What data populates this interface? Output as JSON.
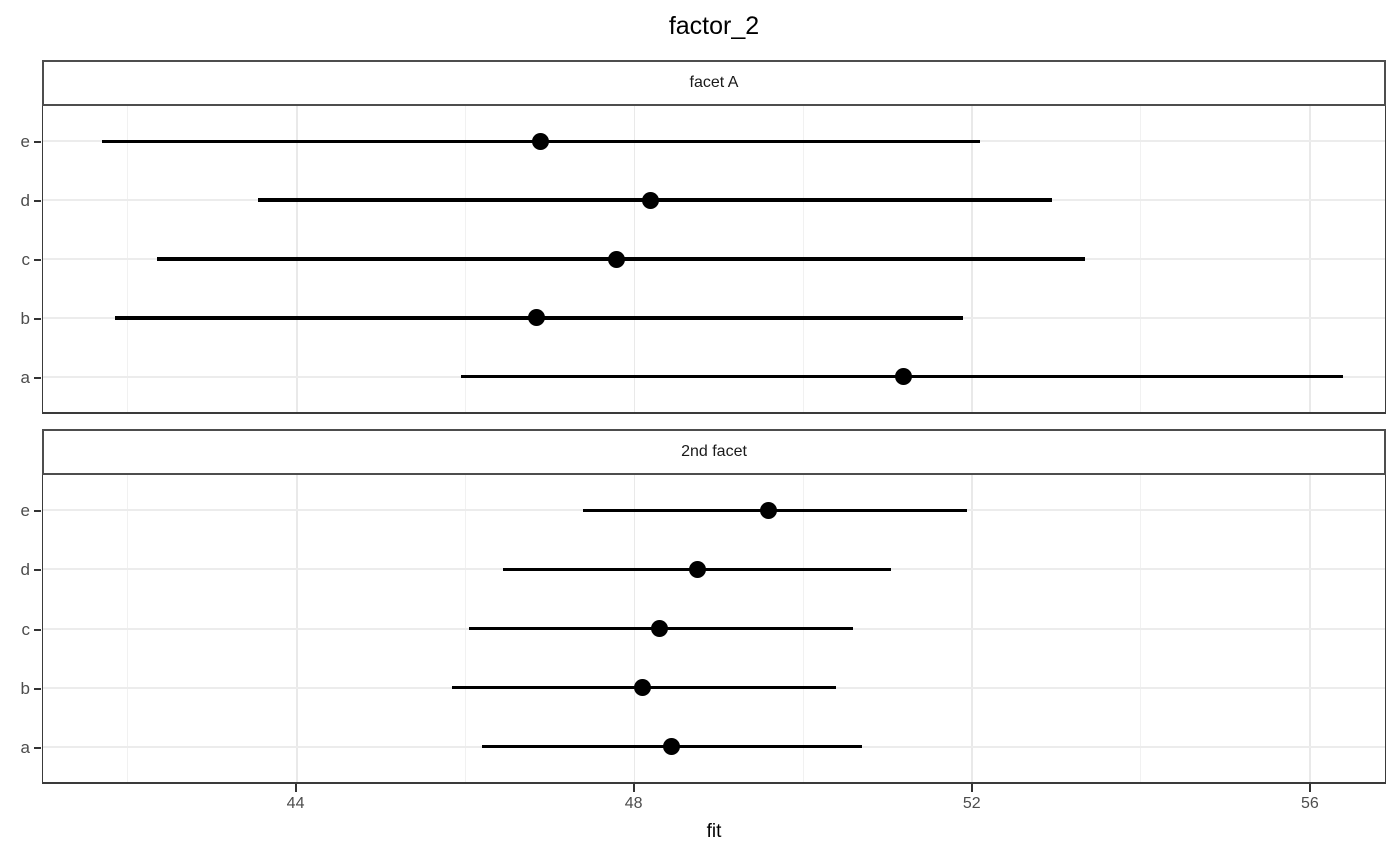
{
  "title": "factor_2",
  "colors": {
    "background": "#ffffff",
    "point": "#000000",
    "error_bar": "#000000",
    "grid_major": "#e9e9e9",
    "grid_minor": "#f1f1f1",
    "grid_row": "#ececec",
    "panel_border": "#3a3a3a",
    "strip_border": "#4d4d4d",
    "strip_background": "#ffffff",
    "axis_text": "#4d4d4d",
    "tick_mark": "#333333",
    "title_text": "#000000"
  },
  "chart_data": {
    "type": "scatter",
    "subtype": "dot-plot-with-horizontal-error-bars",
    "title": "factor_2",
    "xlabel": "fit",
    "ylabel": "",
    "xlim": [
      41.0,
      56.9
    ],
    "x_ticks": [
      44,
      48,
      52,
      56
    ],
    "x_minor_ticks": [
      42,
      46,
      50,
      54
    ],
    "grid": true,
    "legend": false,
    "y_categories_top_to_bottom": [
      "e",
      "d",
      "c",
      "b",
      "a"
    ],
    "facets": [
      {
        "label": "facet A",
        "points": [
          {
            "y": "e",
            "fit": 46.9,
            "lwr": 41.7,
            "upr": 52.1
          },
          {
            "y": "d",
            "fit": 48.2,
            "lwr": 43.55,
            "upr": 52.95
          },
          {
            "y": "c",
            "fit": 47.8,
            "lwr": 42.35,
            "upr": 53.35
          },
          {
            "y": "b",
            "fit": 46.85,
            "lwr": 41.85,
            "upr": 51.9
          },
          {
            "y": "a",
            "fit": 51.2,
            "lwr": 45.95,
            "upr": 56.4
          }
        ]
      },
      {
        "label": "2nd facet",
        "points": [
          {
            "y": "e",
            "fit": 49.6,
            "lwr": 47.4,
            "upr": 51.95
          },
          {
            "y": "d",
            "fit": 48.75,
            "lwr": 46.45,
            "upr": 51.05
          },
          {
            "y": "c",
            "fit": 48.3,
            "lwr": 46.05,
            "upr": 50.6
          },
          {
            "y": "b",
            "fit": 48.1,
            "lwr": 45.85,
            "upr": 50.4
          },
          {
            "y": "a",
            "fit": 48.45,
            "lwr": 46.2,
            "upr": 50.7
          }
        ]
      }
    ]
  }
}
